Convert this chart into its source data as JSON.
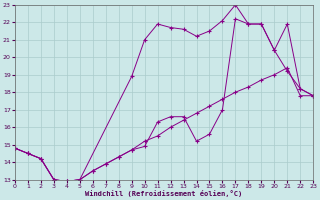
{
  "xlabel": "Windchill (Refroidissement éolien,°C)",
  "bg_color": "#cce8e8",
  "grid_color": "#aacccc",
  "line_color": "#880088",
  "xmin": 0,
  "xmax": 23,
  "ymin": 13,
  "ymax": 23,
  "line1_x": [
    0,
    1,
    2,
    3,
    4,
    5,
    6,
    7,
    8,
    9,
    10,
    11,
    12,
    13,
    14,
    15,
    16,
    17,
    18,
    19,
    20,
    21,
    22,
    23
  ],
  "line1_y": [
    14.8,
    14.5,
    14.2,
    13.0,
    12.9,
    13.0,
    13.5,
    13.9,
    14.3,
    14.7,
    15.2,
    15.5,
    16.0,
    16.4,
    16.8,
    17.2,
    17.6,
    18.0,
    18.3,
    18.7,
    19.0,
    19.4,
    17.8,
    17.8
  ],
  "line2_x": [
    0,
    1,
    2,
    3,
    4,
    5,
    9,
    10,
    11,
    12,
    13,
    14,
    15,
    16,
    17,
    18,
    19,
    20,
    21,
    22,
    23
  ],
  "line2_y": [
    14.8,
    14.5,
    14.2,
    13.0,
    12.9,
    13.0,
    18.9,
    21.0,
    21.9,
    21.7,
    21.6,
    21.2,
    21.5,
    22.1,
    23.0,
    21.9,
    21.9,
    20.4,
    21.9,
    18.2,
    17.8
  ],
  "line3_x": [
    0,
    1,
    2,
    3,
    4,
    5,
    6,
    7,
    8,
    9,
    10,
    11,
    12,
    13,
    14,
    15,
    16,
    17,
    18,
    19,
    20,
    21,
    22,
    23
  ],
  "line3_y": [
    14.8,
    14.5,
    14.2,
    13.0,
    12.9,
    13.0,
    13.5,
    13.9,
    14.3,
    14.7,
    14.9,
    16.3,
    16.6,
    16.6,
    15.2,
    15.6,
    17.0,
    22.2,
    21.9,
    21.9,
    20.4,
    19.2,
    18.2,
    17.8
  ]
}
